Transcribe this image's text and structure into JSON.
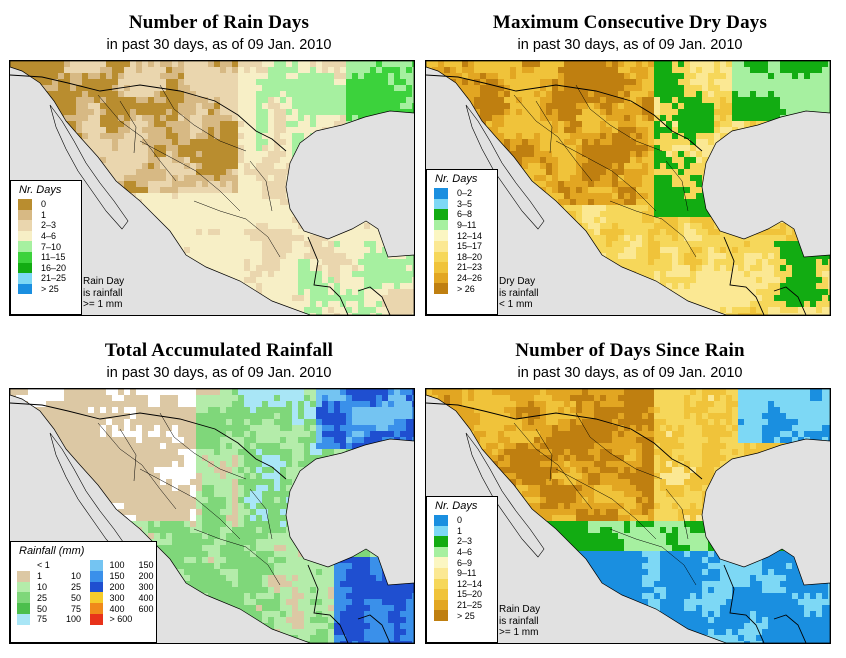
{
  "panels": [
    {
      "title": "Number of Rain Days",
      "subtitle": "in past 30 days, as of  09 Jan. 2010",
      "legend_title": "Nr. Days",
      "legend": [
        {
          "label": "0",
          "color": "#b98d2f"
        },
        {
          "label": "1",
          "color": "#d7b984"
        },
        {
          "label": "2–3",
          "color": "#ead6ae"
        },
        {
          "label": "4–6",
          "color": "#f7efc6"
        },
        {
          "label": "7–10",
          "color": "#a6f0a0"
        },
        {
          "label": "11–15",
          "color": "#3cd23c"
        },
        {
          "label": "16–20",
          "color": "#12ac12"
        },
        {
          "label": "21–25",
          "color": "#7dd8f5"
        },
        {
          "label": "> 25",
          "color": "#1a8fe0"
        }
      ],
      "note": [
        "Rain Day",
        "is rainfall",
        ">= 1 mm"
      ]
    },
    {
      "title": "Maximum Consecutive Dry Days",
      "subtitle": "in past 30 days, as of  09 Jan. 2010",
      "legend_title": "Nr. Days",
      "legend": [
        {
          "label": "0–2",
          "color": "#1a8fe0"
        },
        {
          "label": "3–5",
          "color": "#7dd8f5"
        },
        {
          "label": "6–8",
          "color": "#12ac12"
        },
        {
          "label": "9–11",
          "color": "#a6f0a0"
        },
        {
          "label": "12–14",
          "color": "#fbf6c2"
        },
        {
          "label": "15–17",
          "color": "#fbe893"
        },
        {
          "label": "18–20",
          "color": "#f6d75a"
        },
        {
          "label": "21–23",
          "color": "#f0c33a"
        },
        {
          "label": "24–26",
          "color": "#e2a622"
        },
        {
          "label": "> 26",
          "color": "#bf7f10"
        }
      ],
      "note": [
        "Dry Day",
        "is rainfall",
        "< 1 mm"
      ]
    },
    {
      "title": "Total Accumulated Rainfall",
      "subtitle": "in past 30 days, as of  09 Jan. 2010",
      "legend_title": "Rainfall (mm)",
      "legend_left": [
        {
          "a": "< 1",
          "b": "",
          "color": "#ffffff"
        },
        {
          "a": "1",
          "b": "10",
          "color": "#dcc8a4"
        },
        {
          "a": "10",
          "b": "25",
          "color": "#b4ecaa"
        },
        {
          "a": "25",
          "b": "50",
          "color": "#7fd77a"
        },
        {
          "a": "50",
          "b": "75",
          "color": "#4cbf4c"
        },
        {
          "a": "75",
          "b": "100",
          "color": "#a9e6f6"
        }
      ],
      "legend_right": [
        {
          "a": "100",
          "b": "150",
          "color": "#74c4f2"
        },
        {
          "a": "150",
          "b": "200",
          "color": "#3a90ea"
        },
        {
          "a": "200",
          "b": "300",
          "color": "#1f4fd0"
        },
        {
          "a": "300",
          "b": "400",
          "color": "#f6cc2a"
        },
        {
          "a": "400",
          "b": "600",
          "color": "#f08a1a"
        },
        {
          "a": "> 600",
          "b": "",
          "color": "#e8321a"
        }
      ]
    },
    {
      "title": "Number of Days Since Rain",
      "subtitle": "in past 30 days, as of  09 Jan. 2010",
      "legend_title": "Nr. Days",
      "legend": [
        {
          "label": "0",
          "color": "#1a8fe0"
        },
        {
          "label": "1",
          "color": "#7dd8f5"
        },
        {
          "label": "2–3",
          "color": "#12ac12"
        },
        {
          "label": "4–6",
          "color": "#a6f0a0"
        },
        {
          "label": "6–9",
          "color": "#fbf6c2"
        },
        {
          "label": "9–11",
          "color": "#fbe893"
        },
        {
          "label": "12–14",
          "color": "#f6d75a"
        },
        {
          "label": "15–20",
          "color": "#f0c33a"
        },
        {
          "label": "21–25",
          "color": "#e2a622"
        },
        {
          "label": "> 25",
          "color": "#bf7f10"
        }
      ],
      "note": [
        "Rain Day",
        "is rainfall",
        ">= 1 mm"
      ]
    }
  ]
}
